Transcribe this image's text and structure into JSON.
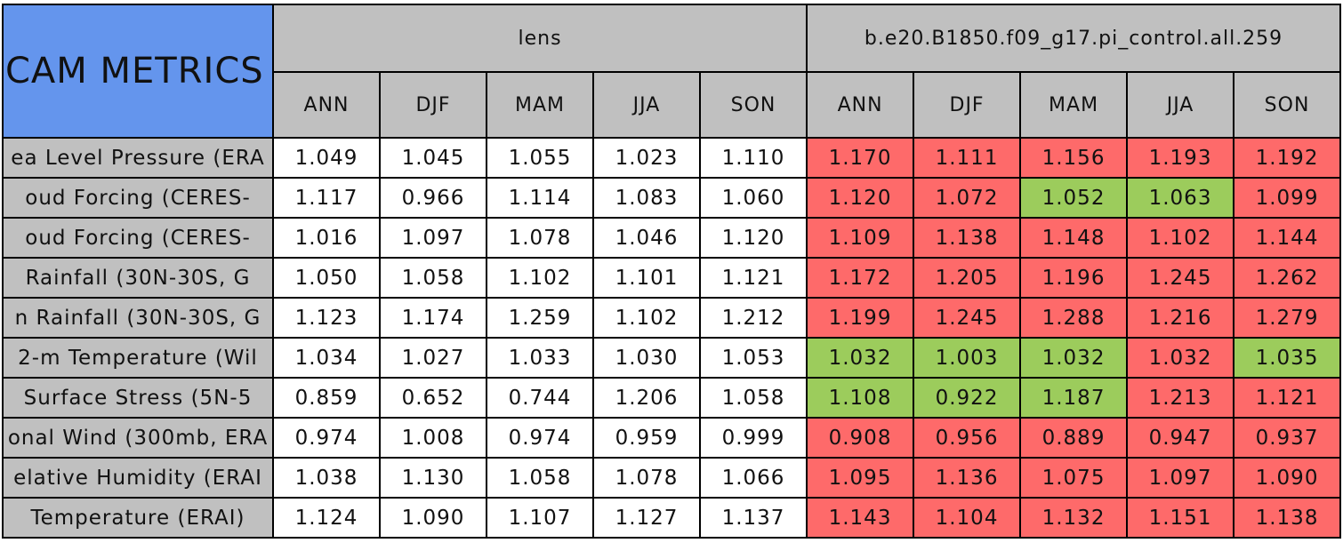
{
  "table": {
    "title": "CAM METRICS",
    "groups": [
      "lens",
      "b.e20.B1850.f09_g17.pi_control.all.259"
    ],
    "seasons": [
      "ANN",
      "DJF",
      "MAM",
      "JJA",
      "SON",
      "ANN",
      "DJF",
      "MAM",
      "JJA",
      "SON"
    ],
    "rows": [
      {
        "label": "ea Level Pressure (ERA",
        "values": [
          "1.049",
          "1.045",
          "1.055",
          "1.023",
          "1.110",
          "1.170",
          "1.111",
          "1.156",
          "1.193",
          "1.192"
        ],
        "colors": [
          "#ffffff",
          "#ffffff",
          "#ffffff",
          "#ffffff",
          "#ffffff",
          "#fe6a6a",
          "#fe6a6a",
          "#fe6a6a",
          "#fe6a6a",
          "#fe6a6a"
        ]
      },
      {
        "label": "oud Forcing (CERES-",
        "values": [
          "1.117",
          "0.966",
          "1.114",
          "1.083",
          "1.060",
          "1.120",
          "1.072",
          "1.052",
          "1.063",
          "1.099"
        ],
        "colors": [
          "#ffffff",
          "#ffffff",
          "#ffffff",
          "#ffffff",
          "#ffffff",
          "#fe6a6a",
          "#fe6a6a",
          "#9ccc5c",
          "#9ccc5c",
          "#fe6a6a"
        ]
      },
      {
        "label": "oud Forcing (CERES-",
        "values": [
          "1.016",
          "1.097",
          "1.078",
          "1.046",
          "1.120",
          "1.109",
          "1.138",
          "1.148",
          "1.102",
          "1.144"
        ],
        "colors": [
          "#ffffff",
          "#ffffff",
          "#ffffff",
          "#ffffff",
          "#ffffff",
          "#fe6a6a",
          "#fe6a6a",
          "#fe6a6a",
          "#fe6a6a",
          "#fe6a6a"
        ]
      },
      {
        "label": "Rainfall (30N-30S, G",
        "values": [
          "1.050",
          "1.058",
          "1.102",
          "1.101",
          "1.121",
          "1.172",
          "1.205",
          "1.196",
          "1.245",
          "1.262"
        ],
        "colors": [
          "#ffffff",
          "#ffffff",
          "#ffffff",
          "#ffffff",
          "#ffffff",
          "#fe6a6a",
          "#fe6a6a",
          "#fe6a6a",
          "#fe6a6a",
          "#fe6a6a"
        ]
      },
      {
        "label": "n Rainfall (30N-30S, G",
        "values": [
          "1.123",
          "1.174",
          "1.259",
          "1.102",
          "1.212",
          "1.199",
          "1.245",
          "1.288",
          "1.216",
          "1.279"
        ],
        "colors": [
          "#ffffff",
          "#ffffff",
          "#ffffff",
          "#ffffff",
          "#ffffff",
          "#fe6a6a",
          "#fe6a6a",
          "#fe6a6a",
          "#fe6a6a",
          "#fe6a6a"
        ]
      },
      {
        "label": "2-m Temperature (Wil",
        "values": [
          "1.034",
          "1.027",
          "1.033",
          "1.030",
          "1.053",
          "1.032",
          "1.003",
          "1.032",
          "1.032",
          "1.035"
        ],
        "colors": [
          "#ffffff",
          "#ffffff",
          "#ffffff",
          "#ffffff",
          "#ffffff",
          "#9ccc5c",
          "#9ccc5c",
          "#9ccc5c",
          "#fe6a6a",
          "#9ccc5c"
        ]
      },
      {
        "label": "Surface Stress (5N-5",
        "values": [
          "0.859",
          "0.652",
          "0.744",
          "1.206",
          "1.058",
          "1.108",
          "0.922",
          "1.187",
          "1.213",
          "1.121"
        ],
        "colors": [
          "#ffffff",
          "#ffffff",
          "#ffffff",
          "#ffffff",
          "#ffffff",
          "#9ccc5c",
          "#9ccc5c",
          "#9ccc5c",
          "#fe6a6a",
          "#fe6a6a"
        ]
      },
      {
        "label": "onal Wind (300mb, ERA",
        "values": [
          "0.974",
          "1.008",
          "0.974",
          "0.959",
          "0.999",
          "0.908",
          "0.956",
          "0.889",
          "0.947",
          "0.937"
        ],
        "colors": [
          "#ffffff",
          "#ffffff",
          "#ffffff",
          "#ffffff",
          "#ffffff",
          "#fe6a6a",
          "#fe6a6a",
          "#fe6a6a",
          "#fe6a6a",
          "#fe6a6a"
        ]
      },
      {
        "label": "elative Humidity (ERAI",
        "values": [
          "1.038",
          "1.130",
          "1.058",
          "1.078",
          "1.066",
          "1.095",
          "1.136",
          "1.075",
          "1.097",
          "1.090"
        ],
        "colors": [
          "#ffffff",
          "#ffffff",
          "#ffffff",
          "#ffffff",
          "#ffffff",
          "#fe6a6a",
          "#fe6a6a",
          "#fe6a6a",
          "#fe6a6a",
          "#fe6a6a"
        ]
      },
      {
        "label": "Temperature (ERAI)",
        "values": [
          "1.124",
          "1.090",
          "1.107",
          "1.127",
          "1.137",
          "1.143",
          "1.104",
          "1.132",
          "1.151",
          "1.138"
        ],
        "colors": [
          "#ffffff",
          "#ffffff",
          "#ffffff",
          "#ffffff",
          "#ffffff",
          "#fe6a6a",
          "#fe6a6a",
          "#fe6a6a",
          "#fe6a6a",
          "#fe6a6a"
        ]
      }
    ]
  }
}
